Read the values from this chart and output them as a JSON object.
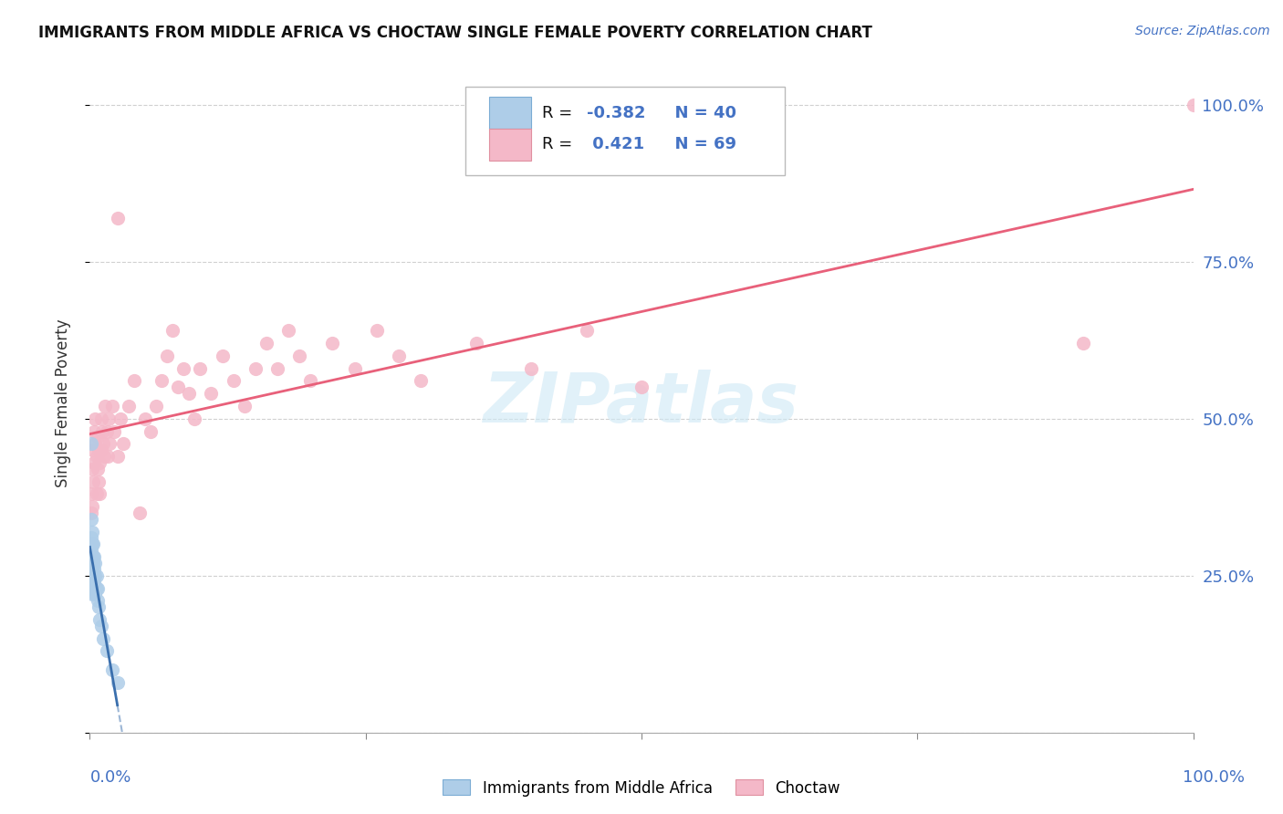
{
  "title": "IMMIGRANTS FROM MIDDLE AFRICA VS CHOCTAW SINGLE FEMALE POVERTY CORRELATION CHART",
  "source": "Source: ZipAtlas.com",
  "ylabel": "Single Female Poverty",
  "legend1_color": "#aecde8",
  "legend2_color": "#f4b8c8",
  "line1_color": "#3a6fad",
  "line2_color": "#e8607a",
  "watermark": "ZIPatlas",
  "background_color": "#ffffff",
  "grid_color": "#d0d0d0",
  "blue_scatter_x": [
    0.001,
    0.001,
    0.001,
    0.001,
    0.001,
    0.001,
    0.001,
    0.001,
    0.001,
    0.001,
    0.002,
    0.002,
    0.002,
    0.002,
    0.002,
    0.002,
    0.002,
    0.002,
    0.003,
    0.003,
    0.003,
    0.003,
    0.003,
    0.004,
    0.004,
    0.004,
    0.005,
    0.005,
    0.005,
    0.006,
    0.006,
    0.007,
    0.007,
    0.008,
    0.009,
    0.01,
    0.012,
    0.015,
    0.02,
    0.025
  ],
  "blue_scatter_y": [
    0.34,
    0.31,
    0.3,
    0.29,
    0.28,
    0.27,
    0.26,
    0.25,
    0.24,
    0.23,
    0.32,
    0.3,
    0.28,
    0.27,
    0.26,
    0.25,
    0.24,
    0.22,
    0.3,
    0.28,
    0.27,
    0.25,
    0.24,
    0.28,
    0.26,
    0.24,
    0.27,
    0.25,
    0.22,
    0.25,
    0.23,
    0.23,
    0.21,
    0.2,
    0.18,
    0.17,
    0.15,
    0.13,
    0.1,
    0.08
  ],
  "blue_outlier_x": [
    0.001
  ],
  "blue_outlier_y": [
    0.46
  ],
  "pink_scatter_x": [
    0.001,
    0.001,
    0.002,
    0.002,
    0.003,
    0.003,
    0.004,
    0.004,
    0.005,
    0.005,
    0.006,
    0.006,
    0.007,
    0.007,
    0.008,
    0.008,
    0.009,
    0.009,
    0.01,
    0.01,
    0.011,
    0.012,
    0.013,
    0.014,
    0.015,
    0.016,
    0.017,
    0.018,
    0.02,
    0.022,
    0.025,
    0.025,
    0.028,
    0.03,
    0.035,
    0.04,
    0.045,
    0.05,
    0.055,
    0.06,
    0.065,
    0.07,
    0.075,
    0.08,
    0.085,
    0.09,
    0.095,
    0.1,
    0.11,
    0.12,
    0.13,
    0.14,
    0.15,
    0.16,
    0.17,
    0.18,
    0.19,
    0.2,
    0.22,
    0.24,
    0.26,
    0.28,
    0.3,
    0.35,
    0.4,
    0.45,
    0.5,
    0.9,
    1.0
  ],
  "pink_scatter_y": [
    0.38,
    0.35,
    0.42,
    0.36,
    0.45,
    0.4,
    0.48,
    0.43,
    0.5,
    0.46,
    0.44,
    0.38,
    0.47,
    0.42,
    0.45,
    0.4,
    0.43,
    0.38,
    0.5,
    0.45,
    0.48,
    0.46,
    0.44,
    0.52,
    0.48,
    0.44,
    0.5,
    0.46,
    0.52,
    0.48,
    0.82,
    0.44,
    0.5,
    0.46,
    0.52,
    0.56,
    0.35,
    0.5,
    0.48,
    0.52,
    0.56,
    0.6,
    0.64,
    0.55,
    0.58,
    0.54,
    0.5,
    0.58,
    0.54,
    0.6,
    0.56,
    0.52,
    0.58,
    0.62,
    0.58,
    0.64,
    0.6,
    0.56,
    0.62,
    0.58,
    0.64,
    0.6,
    0.56,
    0.62,
    0.58,
    0.64,
    0.55,
    0.62,
    1.0
  ],
  "xlim": [
    0.0,
    1.0
  ],
  "ylim": [
    0.0,
    1.05
  ],
  "xticks": [
    0.0,
    0.25,
    0.5,
    0.75,
    1.0
  ],
  "yticks": [
    0.25,
    0.5,
    0.75,
    1.0
  ],
  "ytick_labels": [
    "25.0%",
    "50.0%",
    "75.0%",
    "100.0%"
  ]
}
